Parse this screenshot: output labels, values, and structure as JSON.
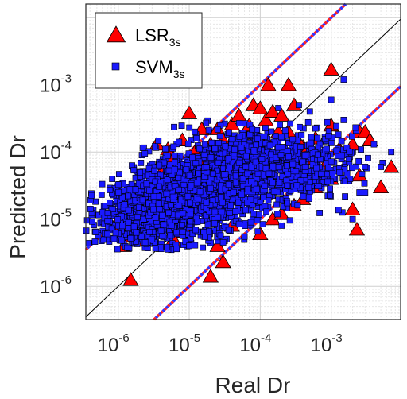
{
  "chart_data": {
    "type": "scatter",
    "xlabel": "Real Dr",
    "ylabel": "Predicted Dr",
    "xscale": "log",
    "yscale": "log",
    "xlim": [
      3.5e-07,
      0.0095
    ],
    "ylim": [
      3.2e-07,
      0.016
    ],
    "grid": true,
    "xticks": [
      {
        "base": "10",
        "exp": "-6",
        "value": 1e-06
      },
      {
        "base": "10",
        "exp": "-5",
        "value": 1e-05
      },
      {
        "base": "10",
        "exp": "-4",
        "value": 0.0001
      },
      {
        "base": "10",
        "exp": "-3",
        "value": 0.001
      }
    ],
    "yticks": [
      {
        "base": "10",
        "exp": "-6",
        "value": 1e-06
      },
      {
        "base": "10",
        "exp": "-5",
        "value": 1e-05
      },
      {
        "base": "10",
        "exp": "-4",
        "value": 0.0001
      },
      {
        "base": "10",
        "exp": "-3",
        "value": 0.001
      }
    ],
    "legend_position": "top-left",
    "reference_lines": [
      {
        "kind": "identity",
        "factor": 1,
        "color": "#000000"
      },
      {
        "kind": "bound",
        "factor": 10,
        "colors": [
          "#ff2020",
          "#3030ff"
        ]
      },
      {
        "kind": "bound",
        "factor": 0.1,
        "colors": [
          "#ff2020",
          "#3030ff"
        ]
      }
    ],
    "series": [
      {
        "name": "LSR",
        "subscript": "3s",
        "marker": "triangle",
        "color": "#ff0000",
        "edge": "#000000",
        "points": [
          [
            1.2e-06,
            1.1e-05
          ],
          [
            9e-07,
            8e-06
          ],
          [
            1.4e-06,
            6.5e-06
          ],
          [
            2e-06,
            1.2e-05
          ],
          [
            2.5e-06,
            9e-06
          ],
          [
            3e-06,
            1.9e-05
          ],
          [
            1.8e-06,
            4.8e-06
          ],
          [
            3.5e-06,
            0.00013
          ],
          [
            5e-06,
            0.00011
          ],
          [
            4e-06,
            3.2e-05
          ],
          [
            6e-06,
            8e-05
          ],
          [
            8e-06,
            0.00015
          ],
          [
            1e-05,
            0.00038
          ],
          [
            1.2e-05,
            0.0001
          ],
          [
            1.5e-05,
            0.00022
          ],
          [
            2e-05,
            0.00013
          ],
          [
            2.5e-05,
            0.00022
          ],
          [
            3e-05,
            0.00015
          ],
          [
            4e-05,
            0.00026
          ],
          [
            5e-05,
            0.00035
          ],
          [
            6e-05,
            0.00019
          ],
          [
            7e-05,
            0.00025
          ],
          [
            8e-05,
            0.0005
          ],
          [
            0.0001,
            0.00045
          ],
          [
            0.00012,
            0.0003
          ],
          [
            0.00015,
            0.0004
          ],
          [
            0.00018,
            0.0002
          ],
          [
            0.0002,
            0.00035
          ],
          [
            0.00025,
            0.0002
          ],
          [
            0.0003,
            0.0005
          ],
          [
            0.001,
            0.0017
          ],
          [
            0.00025,
            0.001
          ],
          [
            0.00013,
            0.001
          ],
          [
            0.0004,
            0.00012
          ],
          [
            0.0006,
            0.00016
          ],
          [
            0.0008,
            9e-05
          ],
          [
            0.001,
            0.00025
          ],
          [
            0.002,
            0.00013
          ],
          [
            0.0025,
            0.0002
          ],
          [
            0.003,
            0.0002
          ],
          [
            0.007,
            6e-05
          ],
          [
            0.0025,
            4.5e-05
          ],
          [
            0.002,
            1.4e-05
          ],
          [
            0.0023,
            7e-06
          ],
          [
            0.005,
            3e-05
          ],
          [
            6e-06,
            6.5e-06
          ],
          [
            8e-06,
            8e-06
          ],
          [
            6e-06,
            5e-06
          ],
          [
            1.5e-06,
            1.25e-06
          ],
          [
            2e-05,
            1.4e-06
          ],
          [
            3e-05,
            2.3e-06
          ],
          [
            2.5e-05,
            4e-06
          ],
          [
            4e-05,
            8e-06
          ],
          [
            0.0001,
            6e-06
          ],
          [
            0.00015,
            1e-05
          ],
          [
            0.0002,
            1.2e-05
          ],
          [
            0.0003,
            1.6e-05
          ],
          [
            0.0004,
            2e-05
          ],
          [
            0.0006,
            3e-05
          ],
          [
            0.001,
            4e-05
          ],
          [
            1.5e-06,
            5.5e-06
          ],
          [
            1.2e-06,
            4e-06
          ],
          [
            2.5e-06,
            2.8e-05
          ],
          [
            4.5e-06,
            6e-05
          ],
          [
            7e-06,
            2e-05
          ],
          [
            1e-05,
            5e-05
          ],
          [
            1.5e-05,
            7e-05
          ],
          [
            3e-05,
            9e-05
          ],
          [
            5e-05,
            0.00012
          ],
          [
            9e-05,
            0.00018
          ],
          [
            0.00012,
            0.00015
          ],
          [
            0.0002,
            0.0001
          ],
          [
            0.00035,
            0.00014
          ],
          [
            0.0005,
            8e-05
          ],
          [
            0.0008,
            6e-05
          ],
          [
            0.0013,
            0.00011
          ],
          [
            0.0035,
            0.00015
          ],
          [
            3e-06,
            7e-06
          ],
          [
            4e-06,
            1.5e-05
          ],
          [
            2e-06,
            2.4e-05
          ]
        ]
      },
      {
        "name": "SVM",
        "subscript": "3s",
        "marker": "square",
        "color": "#1a1aff",
        "edge": "#000000",
        "cloud": [
          {
            "cx": 1.2e-06,
            "cy": 1e-05,
            "sx": 0.26,
            "sy": 0.24,
            "n": 220
          },
          {
            "cx": 3e-06,
            "cy": 1.2e-05,
            "sx": 0.3,
            "sy": 0.3,
            "n": 420
          },
          {
            "cx": 8e-06,
            "cy": 2e-05,
            "sx": 0.34,
            "sy": 0.34,
            "n": 560
          },
          {
            "cx": 2.5e-05,
            "cy": 3.5e-05,
            "sx": 0.34,
            "sy": 0.34,
            "n": 560
          },
          {
            "cx": 8e-05,
            "cy": 5.5e-05,
            "sx": 0.33,
            "sy": 0.3,
            "n": 420
          },
          {
            "cx": 0.0003,
            "cy": 6.5e-05,
            "sx": 0.3,
            "sy": 0.28,
            "n": 260
          },
          {
            "cx": 0.0012,
            "cy": 8e-05,
            "sx": 0.25,
            "sy": 0.25,
            "n": 90
          }
        ],
        "points": [
          [
            0.0015,
            0.0012
          ],
          [
            0.001,
            0.0006
          ],
          [
            0.00035,
            0.0005
          ],
          [
            0.00018,
            0.00045
          ],
          [
            0.005,
            6e-05
          ],
          [
            0.0025,
            2.5e-05
          ],
          [
            0.003,
            6e-05
          ],
          [
            0.004,
            0.00013
          ],
          [
            0.002,
            1e-05
          ],
          [
            1e-05,
            4e-06
          ],
          [
            3e-05,
            4.5e-06
          ],
          [
            6e-05,
            5.5e-06
          ],
          [
            0.0002,
            8e-06
          ],
          [
            7e-07,
            6e-06
          ],
          [
            6e-06,
            0.00012
          ],
          [
            1.2e-05,
            0.0002
          ],
          [
            0.0015,
            0.0003
          ],
          [
            0.007,
            0.0001
          ],
          [
            0.003,
            2.5e-05
          ],
          [
            0.0005,
            0.0004
          ]
        ]
      }
    ]
  }
}
